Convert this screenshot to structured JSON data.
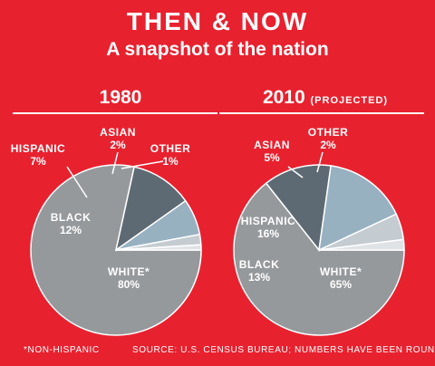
{
  "header": {
    "title": "THEN & NOW",
    "subtitle": "A snapshot of the nation"
  },
  "footer": {
    "note": "*NON-HISPANIC",
    "source": "SOURCE: U.S. CENSUS BUREAU; NUMBERS HAVE BEEN ROUNDED"
  },
  "colors": {
    "background": "#e8212f",
    "white_slice": "#96999c",
    "black_slice": "#5e6a73",
    "hispanic_slice": "#97b1c1",
    "asian_slice": "#c4cbd1",
    "other_slice": "#dfe3e6",
    "text": "#ffffff"
  },
  "chart_data": [
    {
      "type": "pie",
      "title": "1980",
      "subtitle": "",
      "categories": [
        "WHITE*",
        "BLACK",
        "HISPANIC",
        "ASIAN",
        "OTHER"
      ],
      "values": [
        80,
        12,
        7,
        2,
        1
      ],
      "labels": [
        "80%",
        "12%",
        "7%",
        "2%",
        "1%"
      ],
      "unit": "%"
    },
    {
      "type": "pie",
      "title": "2010",
      "subtitle": "(PROJECTED)",
      "categories": [
        "WHITE*",
        "BLACK",
        "HISPANIC",
        "ASIAN",
        "OTHER"
      ],
      "values": [
        65,
        13,
        16,
        5,
        2
      ],
      "labels": [
        "65%",
        "13%",
        "16%",
        "5%",
        "2%"
      ],
      "unit": "%"
    }
  ]
}
